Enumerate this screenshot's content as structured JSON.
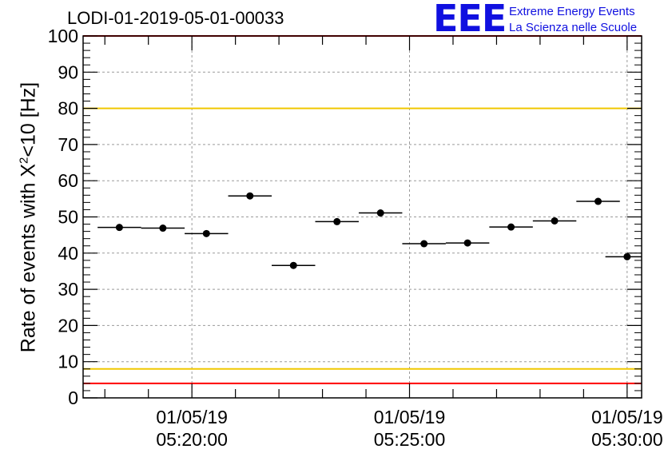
{
  "title": "LODI-01-2019-05-01-00033",
  "logo": {
    "mark": "EEE",
    "line1": "Extreme Energy Events",
    "line2": "La Scienza nelle Scuole"
  },
  "chart_data": {
    "type": "scatter",
    "ylabel_prefix": "Rate of events with X",
    "ylabel_sup": "2",
    "ylabel_suffix": "<10 [Hz]",
    "xlabel": "",
    "x_range": [
      "05:17:30",
      "05:30:20"
    ],
    "ylim": [
      0,
      100
    ],
    "y_ticks": [
      0,
      10,
      20,
      30,
      40,
      50,
      60,
      70,
      80,
      90,
      100
    ],
    "x_ticks": [
      {
        "date": "01/05/19",
        "time": "05:20:00"
      },
      {
        "date": "01/05/19",
        "time": "05:25:00"
      },
      {
        "date": "01/05/19",
        "time": "05:30:00"
      }
    ],
    "grid": true,
    "reference_lines": [
      {
        "y": 100,
        "color": "#ff0000"
      },
      {
        "y": 80,
        "color": "#f0c800"
      },
      {
        "y": 8,
        "color": "#f0c800"
      },
      {
        "y": 4,
        "color": "#ff0000"
      }
    ],
    "points": [
      {
        "x": "05:18:20",
        "y": 47.1
      },
      {
        "x": "05:19:20",
        "y": 46.9
      },
      {
        "x": "05:20:20",
        "y": 45.4
      },
      {
        "x": "05:21:20",
        "y": 55.8
      },
      {
        "x": "05:22:20",
        "y": 36.6
      },
      {
        "x": "05:23:20",
        "y": 48.7
      },
      {
        "x": "05:24:20",
        "y": 51.1
      },
      {
        "x": "05:25:20",
        "y": 42.6
      },
      {
        "x": "05:26:20",
        "y": 42.8
      },
      {
        "x": "05:27:20",
        "y": 47.2
      },
      {
        "x": "05:28:20",
        "y": 48.9
      },
      {
        "x": "05:29:20",
        "y": 54.3
      },
      {
        "x": "05:30:00",
        "y": 39.0
      }
    ],
    "point_halfwidth_seconds": 30,
    "point_color": "#000000"
  }
}
